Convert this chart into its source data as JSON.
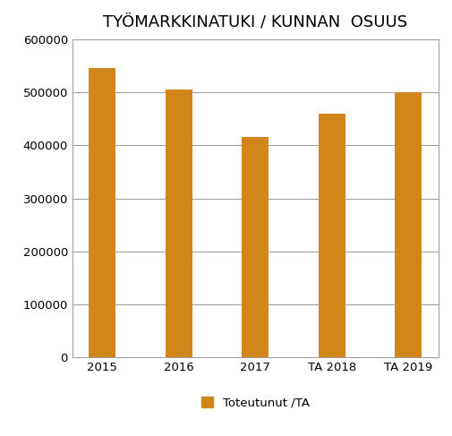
{
  "title": "TYÖMARKKINATUKI / KUNNAN  OSUUS",
  "categories": [
    "2015",
    "2016",
    "2017",
    "TA 2018",
    "TA 2019"
  ],
  "values": [
    545000,
    505000,
    416000,
    460000,
    500000
  ],
  "bar_color": "#D2861A",
  "ylim": [
    0,
    600000
  ],
  "yticks": [
    0,
    100000,
    200000,
    300000,
    400000,
    500000,
    600000
  ],
  "legend_label": "Toteutunut /TA",
  "background_color": "#FFFFFF",
  "grid_color": "#999999",
  "title_fontsize": 13,
  "tick_fontsize": 9.5,
  "legend_fontsize": 9.5,
  "bar_width": 0.35
}
